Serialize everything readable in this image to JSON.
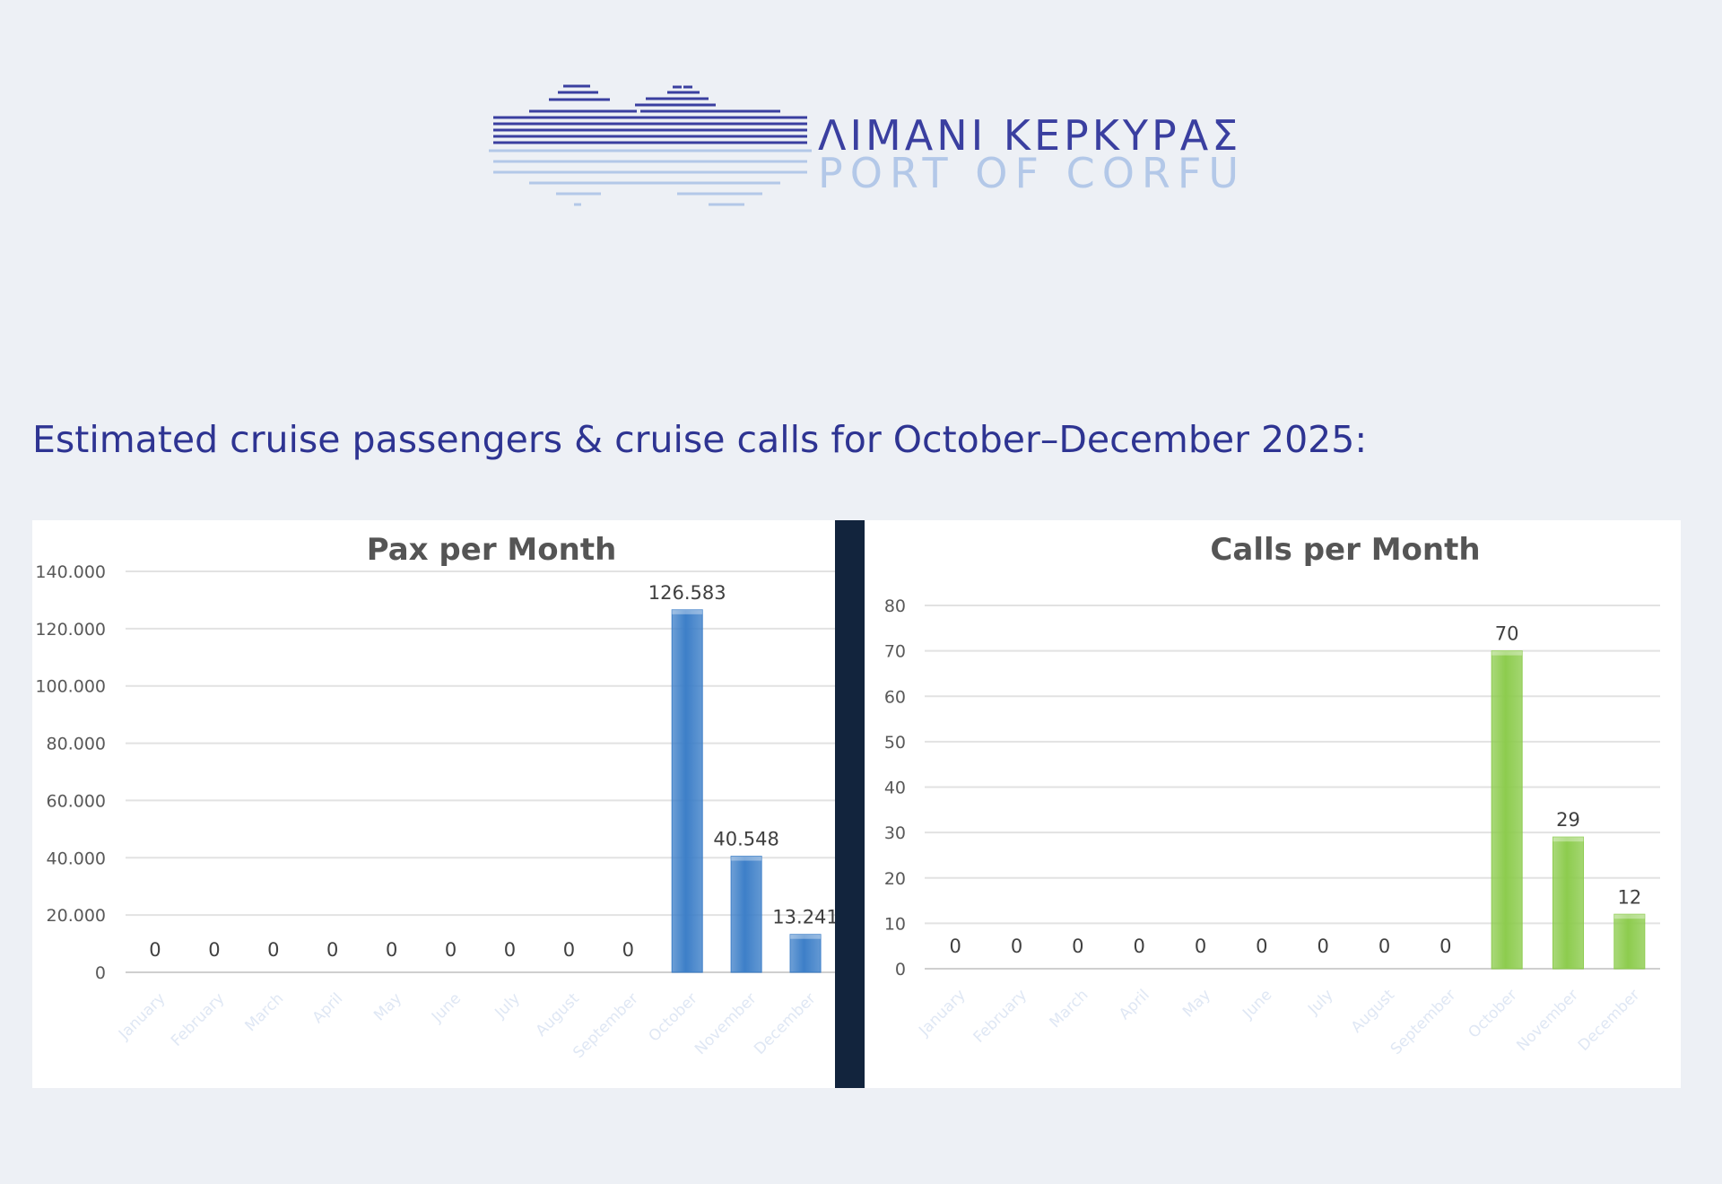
{
  "logo": {
    "title": "ΛΙΜΑΝΙ ΚΕΡΚΥΡΑΣ",
    "subtitle": "PORT OF CORFU",
    "primary_color": "#3a3fa0",
    "secondary_color": "#b3c8e8"
  },
  "heading": "Estimated cruise passengers & cruise calls for October–December 2025:",
  "chart_data": [
    {
      "type": "bar",
      "title": "Pax per Month",
      "categories": [
        "January",
        "February",
        "March",
        "April",
        "May",
        "June",
        "July",
        "August",
        "September",
        "October",
        "November",
        "December"
      ],
      "values": [
        0,
        0,
        0,
        0,
        0,
        0,
        0,
        0,
        0,
        126583,
        40548,
        13241
      ],
      "data_labels": [
        "0",
        "0",
        "0",
        "0",
        "0",
        "0",
        "0",
        "0",
        "0",
        "126.583",
        "40.548",
        "13.241"
      ],
      "yticks": [
        0,
        20000,
        40000,
        60000,
        80000,
        100000,
        120000,
        140000
      ],
      "ytick_labels": [
        "0",
        "20.000",
        "40.000",
        "60.000",
        "80.000",
        "100.000",
        "120.000",
        "140.000"
      ],
      "ylim": [
        0,
        140000
      ],
      "grid": true,
      "legend": false,
      "bar_color": "#3d7fc8"
    },
    {
      "type": "bar",
      "title": "Calls per Month",
      "categories": [
        "January",
        "February",
        "March",
        "April",
        "May",
        "June",
        "July",
        "August",
        "September",
        "October",
        "November",
        "December"
      ],
      "values": [
        0,
        0,
        0,
        0,
        0,
        0,
        0,
        0,
        0,
        70,
        29,
        12
      ],
      "data_labels": [
        "0",
        "0",
        "0",
        "0",
        "0",
        "0",
        "0",
        "0",
        "0",
        "70",
        "29",
        "12"
      ],
      "yticks": [
        0,
        10,
        20,
        30,
        40,
        50,
        60,
        70,
        80
      ],
      "ytick_labels": [
        "0",
        "10",
        "20",
        "30",
        "40",
        "50",
        "60",
        "70",
        "80"
      ],
      "ylim": [
        0,
        80
      ],
      "grid": true,
      "legend": false,
      "bar_color": "#8dcc4e"
    }
  ]
}
